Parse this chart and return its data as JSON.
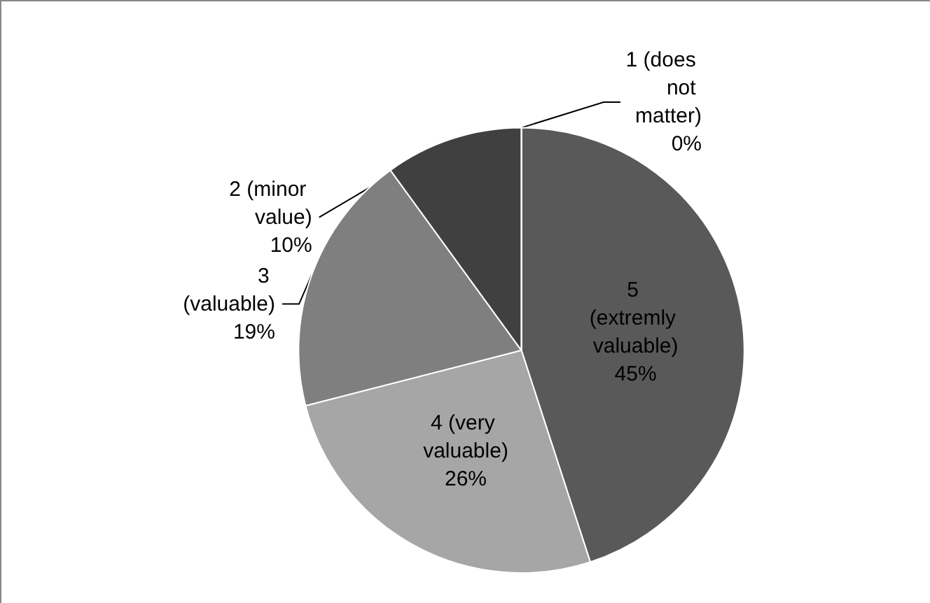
{
  "chart_data": {
    "type": "pie",
    "categories": [
      "5 (extremly valuable)",
      "4 (very valuable)",
      "3 (valuable)",
      "2 (minor value)",
      "1 (does not matter)"
    ],
    "values": [
      45,
      26,
      19,
      10,
      0
    ],
    "colors": [
      "#595959",
      "#a6a6a6",
      "#7f7f7f",
      "#404040",
      "#262626"
    ],
    "value_labels": [
      "45%",
      "26%",
      "19%",
      "10%",
      "0%"
    ],
    "legend": false
  }
}
